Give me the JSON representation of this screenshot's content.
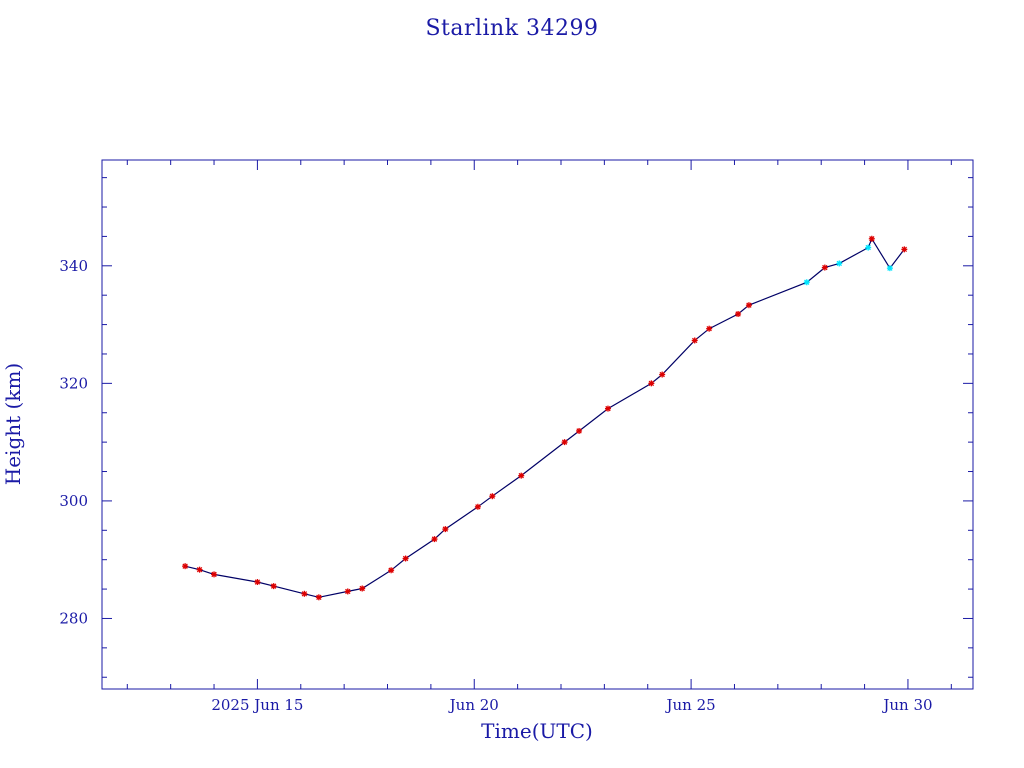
{
  "chart_data": {
    "type": "line",
    "title": "Starlink 34299",
    "xlabel": "Time(UTC)",
    "ylabel": "Height (km)",
    "x_unit": "date (2025)",
    "xlim": [
      "2025-06-11T10:00",
      "2025-07-01T12:00"
    ],
    "ylim": [
      268,
      358
    ],
    "x_ticks": [
      {
        "at": "2025-06-15",
        "label": "2025 Jun 15"
      },
      {
        "at": "2025-06-20",
        "label": "Jun 20"
      },
      {
        "at": "2025-06-25",
        "label": "Jun 25"
      },
      {
        "at": "2025-06-30",
        "label": "Jun 30"
      }
    ],
    "y_ticks": [
      280,
      300,
      320,
      340
    ],
    "grid": false,
    "colors": {
      "axis": "#1a1aa6",
      "line": "#000066",
      "marker_red": "#dd0000",
      "marker_cyan": "#00e5ff"
    },
    "series": [
      {
        "points": [
          {
            "x": "2025-06-13T08:00",
            "y": 288.9,
            "m": "red"
          },
          {
            "x": "2025-06-13T16:00",
            "y": 288.3,
            "m": "red"
          },
          {
            "x": "2025-06-14T00:00",
            "y": 287.5,
            "m": "red"
          },
          {
            "x": "2025-06-15T00:00",
            "y": 286.2,
            "m": "red"
          },
          {
            "x": "2025-06-15T09:00",
            "y": 285.5,
            "m": "red"
          },
          {
            "x": "2025-06-16T02:00",
            "y": 284.2,
            "m": "red"
          },
          {
            "x": "2025-06-16T10:00",
            "y": 283.6,
            "m": "red"
          },
          {
            "x": "2025-06-17T02:00",
            "y": 284.6,
            "m": "red"
          },
          {
            "x": "2025-06-17T10:00",
            "y": 285.1,
            "m": "red"
          },
          {
            "x": "2025-06-18T02:00",
            "y": 288.2,
            "m": "red"
          },
          {
            "x": "2025-06-18T10:00",
            "y": 290.2,
            "m": "red"
          },
          {
            "x": "2025-06-19T02:00",
            "y": 293.5,
            "m": "red"
          },
          {
            "x": "2025-06-19T08:00",
            "y": 295.2,
            "m": "red"
          },
          {
            "x": "2025-06-20T02:00",
            "y": 299.0,
            "m": "red"
          },
          {
            "x": "2025-06-20T10:00",
            "y": 300.8,
            "m": "red"
          },
          {
            "x": "2025-06-21T02:00",
            "y": 304.3,
            "m": "red"
          },
          {
            "x": "2025-06-22T02:00",
            "y": 310.0,
            "m": "red"
          },
          {
            "x": "2025-06-22T10:00",
            "y": 311.9,
            "m": "red"
          },
          {
            "x": "2025-06-23T02:00",
            "y": 315.7,
            "m": "red"
          },
          {
            "x": "2025-06-24T02:00",
            "y": 320.0,
            "m": "red"
          },
          {
            "x": "2025-06-24T08:00",
            "y": 321.5,
            "m": "red"
          },
          {
            "x": "2025-06-25T02:00",
            "y": 327.3,
            "m": "red"
          },
          {
            "x": "2025-06-25T10:00",
            "y": 329.3,
            "m": "red"
          },
          {
            "x": "2025-06-26T02:00",
            "y": 331.8,
            "m": "red"
          },
          {
            "x": "2025-06-26T08:00",
            "y": 333.3,
            "m": "red"
          },
          {
            "x": "2025-06-27T16:00",
            "y": 337.2,
            "m": "cyan"
          },
          {
            "x": "2025-06-28T02:00",
            "y": 339.7,
            "m": "red"
          },
          {
            "x": "2025-06-28T10:00",
            "y": 340.4,
            "m": "cyan"
          },
          {
            "x": "2025-06-29T02:00",
            "y": 343.1,
            "m": "cyan"
          },
          {
            "x": "2025-06-29T04:00",
            "y": 344.6,
            "m": "red"
          },
          {
            "x": "2025-06-29T14:00",
            "y": 339.6,
            "m": "cyan"
          },
          {
            "x": "2025-06-29T22:00",
            "y": 342.8,
            "m": "red"
          }
        ]
      }
    ]
  }
}
